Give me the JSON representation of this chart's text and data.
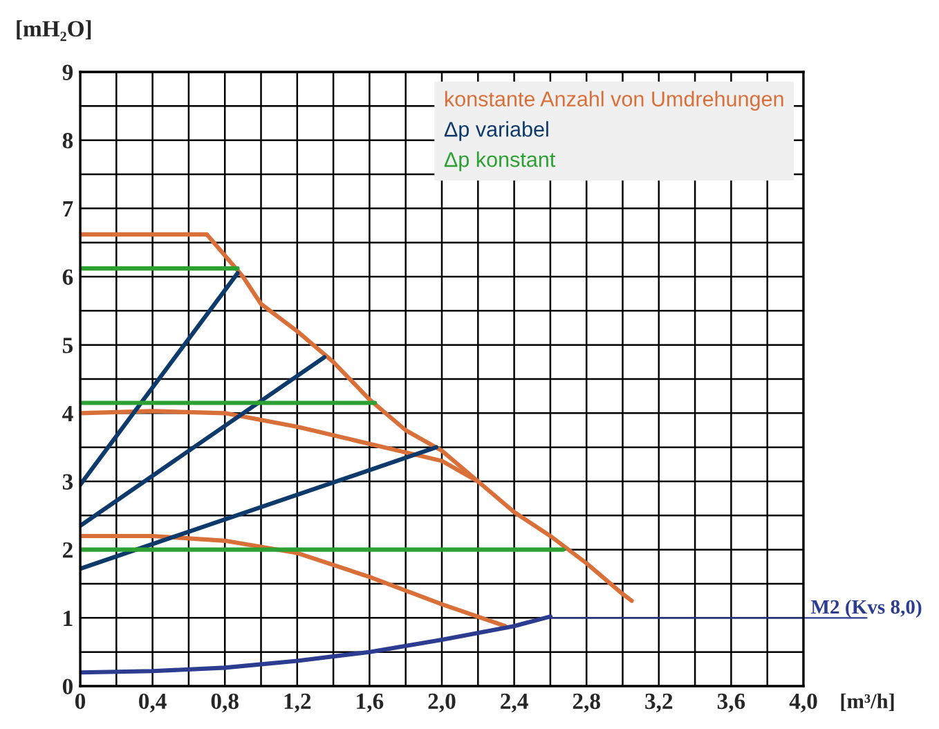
{
  "chart_data": {
    "type": "line",
    "xlabel": "[m³/h]",
    "ylabel": "[mH₂O]",
    "xlim": [
      0,
      4.0
    ],
    "ylim": [
      0,
      9
    ],
    "xticks": [
      0,
      {
        "value": 0.2,
        "label": null
      },
      {
        "value": 0.4,
        "label": "0,4"
      },
      {
        "value": 0.6,
        "label": null
      },
      {
        "value": 0.8,
        "label": "0,8"
      },
      {
        "value": 1.0,
        "label": null
      },
      {
        "value": 1.2,
        "label": "1,2"
      },
      {
        "value": 1.4,
        "label": null
      },
      {
        "value": 1.6,
        "label": "1,6"
      },
      {
        "value": 1.8,
        "label": null
      },
      {
        "value": 2.0,
        "label": "2,0"
      },
      {
        "value": 2.2,
        "label": null
      },
      {
        "value": 2.4,
        "label": "2,4"
      },
      {
        "value": 2.6,
        "label": null
      },
      {
        "value": 2.8,
        "label": "2,8"
      },
      {
        "value": 3.0,
        "label": null
      },
      {
        "value": 3.2,
        "label": "3,2"
      },
      {
        "value": 3.4,
        "label": null
      },
      {
        "value": 3.6,
        "label": "3,6"
      },
      {
        "value": 3.8,
        "label": null
      },
      {
        "value": 4.0,
        "label": "4,0"
      }
    ],
    "yticks": [
      0,
      {
        "value": 0.5,
        "label": null
      },
      1,
      {
        "value": 1.5,
        "label": null
      },
      2,
      {
        "value": 2.5,
        "label": null
      },
      3,
      {
        "value": 3.5,
        "label": null
      },
      4,
      {
        "value": 4.5,
        "label": null
      },
      5,
      {
        "value": 5.5,
        "label": null
      },
      6,
      {
        "value": 6.5,
        "label": null
      },
      7,
      {
        "value": 7.5,
        "label": null
      },
      8,
      {
        "value": 8.5,
        "label": null
      },
      9
    ],
    "grid": true,
    "legend": "top right",
    "marker": "none",
    "line_style": "solid",
    "series": [
      {
        "name": "konstante Anzahl von Umdrehungen",
        "color": "#d9703a",
        "x": [
          0,
          0.7,
          0.9,
          1.0,
          1.2,
          1.4,
          1.6,
          1.8,
          2.0,
          2.2,
          2.4,
          2.6,
          2.8,
          3.0,
          3.05
        ],
        "values": [
          6.62,
          6.62,
          6.0,
          5.6,
          5.2,
          4.75,
          4.2,
          3.75,
          3.45,
          3.0,
          2.55,
          2.2,
          1.8,
          1.35,
          1.25
        ]
      },
      {
        "color": "#d9703a",
        "x": [
          0,
          0.4,
          0.8,
          1.2,
          1.6,
          2.0,
          2.2
        ],
        "values": [
          4.0,
          4.03,
          4.0,
          3.8,
          3.55,
          3.3,
          3.0
        ]
      },
      {
        "color": "#d9703a",
        "x": [
          0,
          0.4,
          0.8,
          1.2,
          1.6,
          2.0,
          2.35
        ],
        "values": [
          2.2,
          2.2,
          2.13,
          1.95,
          1.6,
          1.2,
          0.88
        ]
      },
      {
        "name": "Δp variabel",
        "color": "#0d3a6b",
        "x": [
          0,
          0.87
        ],
        "values": [
          2.95,
          6.05
        ]
      },
      {
        "color": "#0d3a6b",
        "x": [
          0,
          1.35
        ],
        "values": [
          2.35,
          4.82
        ]
      },
      {
        "color": "#0d3a6b",
        "x": [
          0,
          1.97
        ],
        "values": [
          1.72,
          3.5
        ]
      },
      {
        "name": "Δp konstant",
        "color": "#2ca033",
        "x": [
          0,
          0.87
        ],
        "values": [
          6.12,
          6.12
        ]
      },
      {
        "color": "#2ca033",
        "x": [
          0,
          1.63
        ],
        "values": [
          4.15,
          4.15
        ]
      },
      {
        "color": "#2ca033",
        "x": [
          0,
          2.67
        ],
        "values": [
          2.0,
          2.0
        ]
      },
      {
        "color": "#2b3c91",
        "x": [
          0,
          0.4,
          0.8,
          1.2,
          1.6,
          2.0,
          2.4,
          2.6
        ],
        "values": [
          0.2,
          0.22,
          0.27,
          0.37,
          0.5,
          0.68,
          0.88,
          1.02
        ]
      }
    ],
    "annotations": [
      {
        "text": "M2 (Kvs 8,0)",
        "x": 2.6,
        "y": 1.0
      }
    ]
  }
}
